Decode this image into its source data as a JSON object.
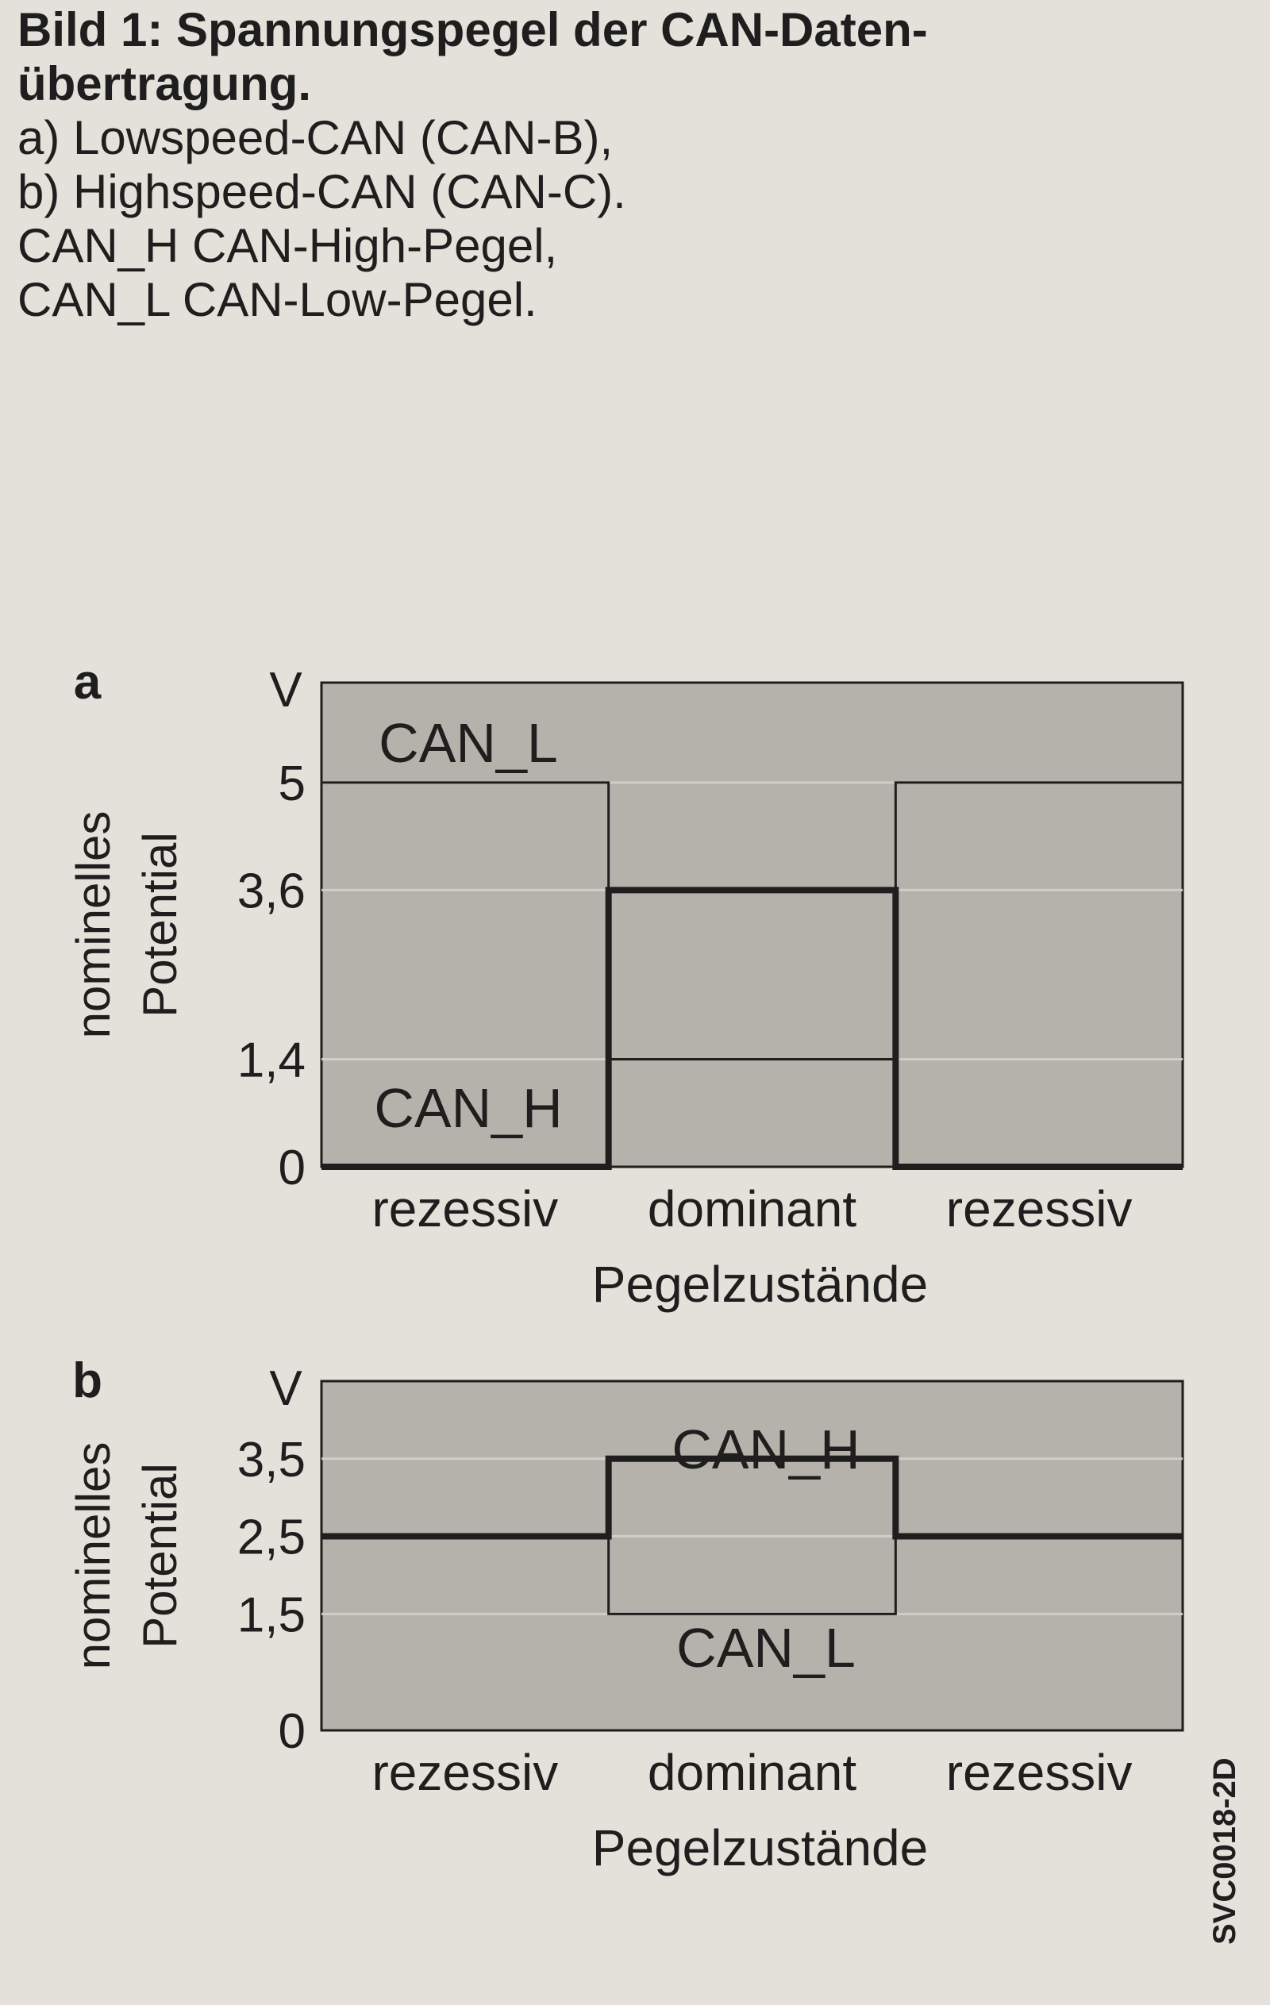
{
  "caption": {
    "title": "Bild 1: Spannungspegel der CAN-Daten- übertragung.",
    "line_a": "a) Lowspeed-CAN (CAN-B),",
    "line_b": "b) Highspeed-CAN (CAN-C).",
    "line_h": "CAN_H CAN-High-Pegel,",
    "line_l": "CAN_L CAN-Low-Pegel."
  },
  "figure_code": "SVC0018-2D",
  "colors": {
    "background": "#e3e1da",
    "plot_fill": "#b4b2ab",
    "line": "#1e1e1e"
  },
  "chart_data": [
    {
      "type": "line",
      "panel_label": "a",
      "title": "",
      "xlabel": "Pegelzustände",
      "ylabel_line1": "nominelles",
      "ylabel_line2": "Potential",
      "unit": "V",
      "categories": [
        "rezessiv",
        "dominant",
        "rezessiv"
      ],
      "yticks": [
        "0",
        "1,4",
        "3,6",
        "5"
      ],
      "ytick_values": [
        0,
        1.4,
        3.6,
        5
      ],
      "ylim": [
        0,
        6.3
      ],
      "series": [
        {
          "name": "CAN_L",
          "values": [
            5,
            1.4,
            5
          ]
        },
        {
          "name": "CAN_H",
          "values": [
            0,
            3.6,
            0
          ]
        }
      ]
    },
    {
      "type": "line",
      "panel_label": "b",
      "title": "",
      "xlabel": "Pegelzustände",
      "ylabel_line1": "nominelles",
      "ylabel_line2": "Potential",
      "unit": "V",
      "categories": [
        "rezessiv",
        "dominant",
        "rezessiv"
      ],
      "yticks": [
        "0",
        "1,5",
        "2,5",
        "3,5"
      ],
      "ytick_values": [
        0,
        1.5,
        2.5,
        3.5
      ],
      "ylim": [
        0,
        4.5
      ],
      "series": [
        {
          "name": "CAN_H",
          "values": [
            2.5,
            3.5,
            2.5
          ]
        },
        {
          "name": "CAN_L",
          "values": [
            2.5,
            1.5,
            2.5
          ]
        }
      ]
    }
  ]
}
